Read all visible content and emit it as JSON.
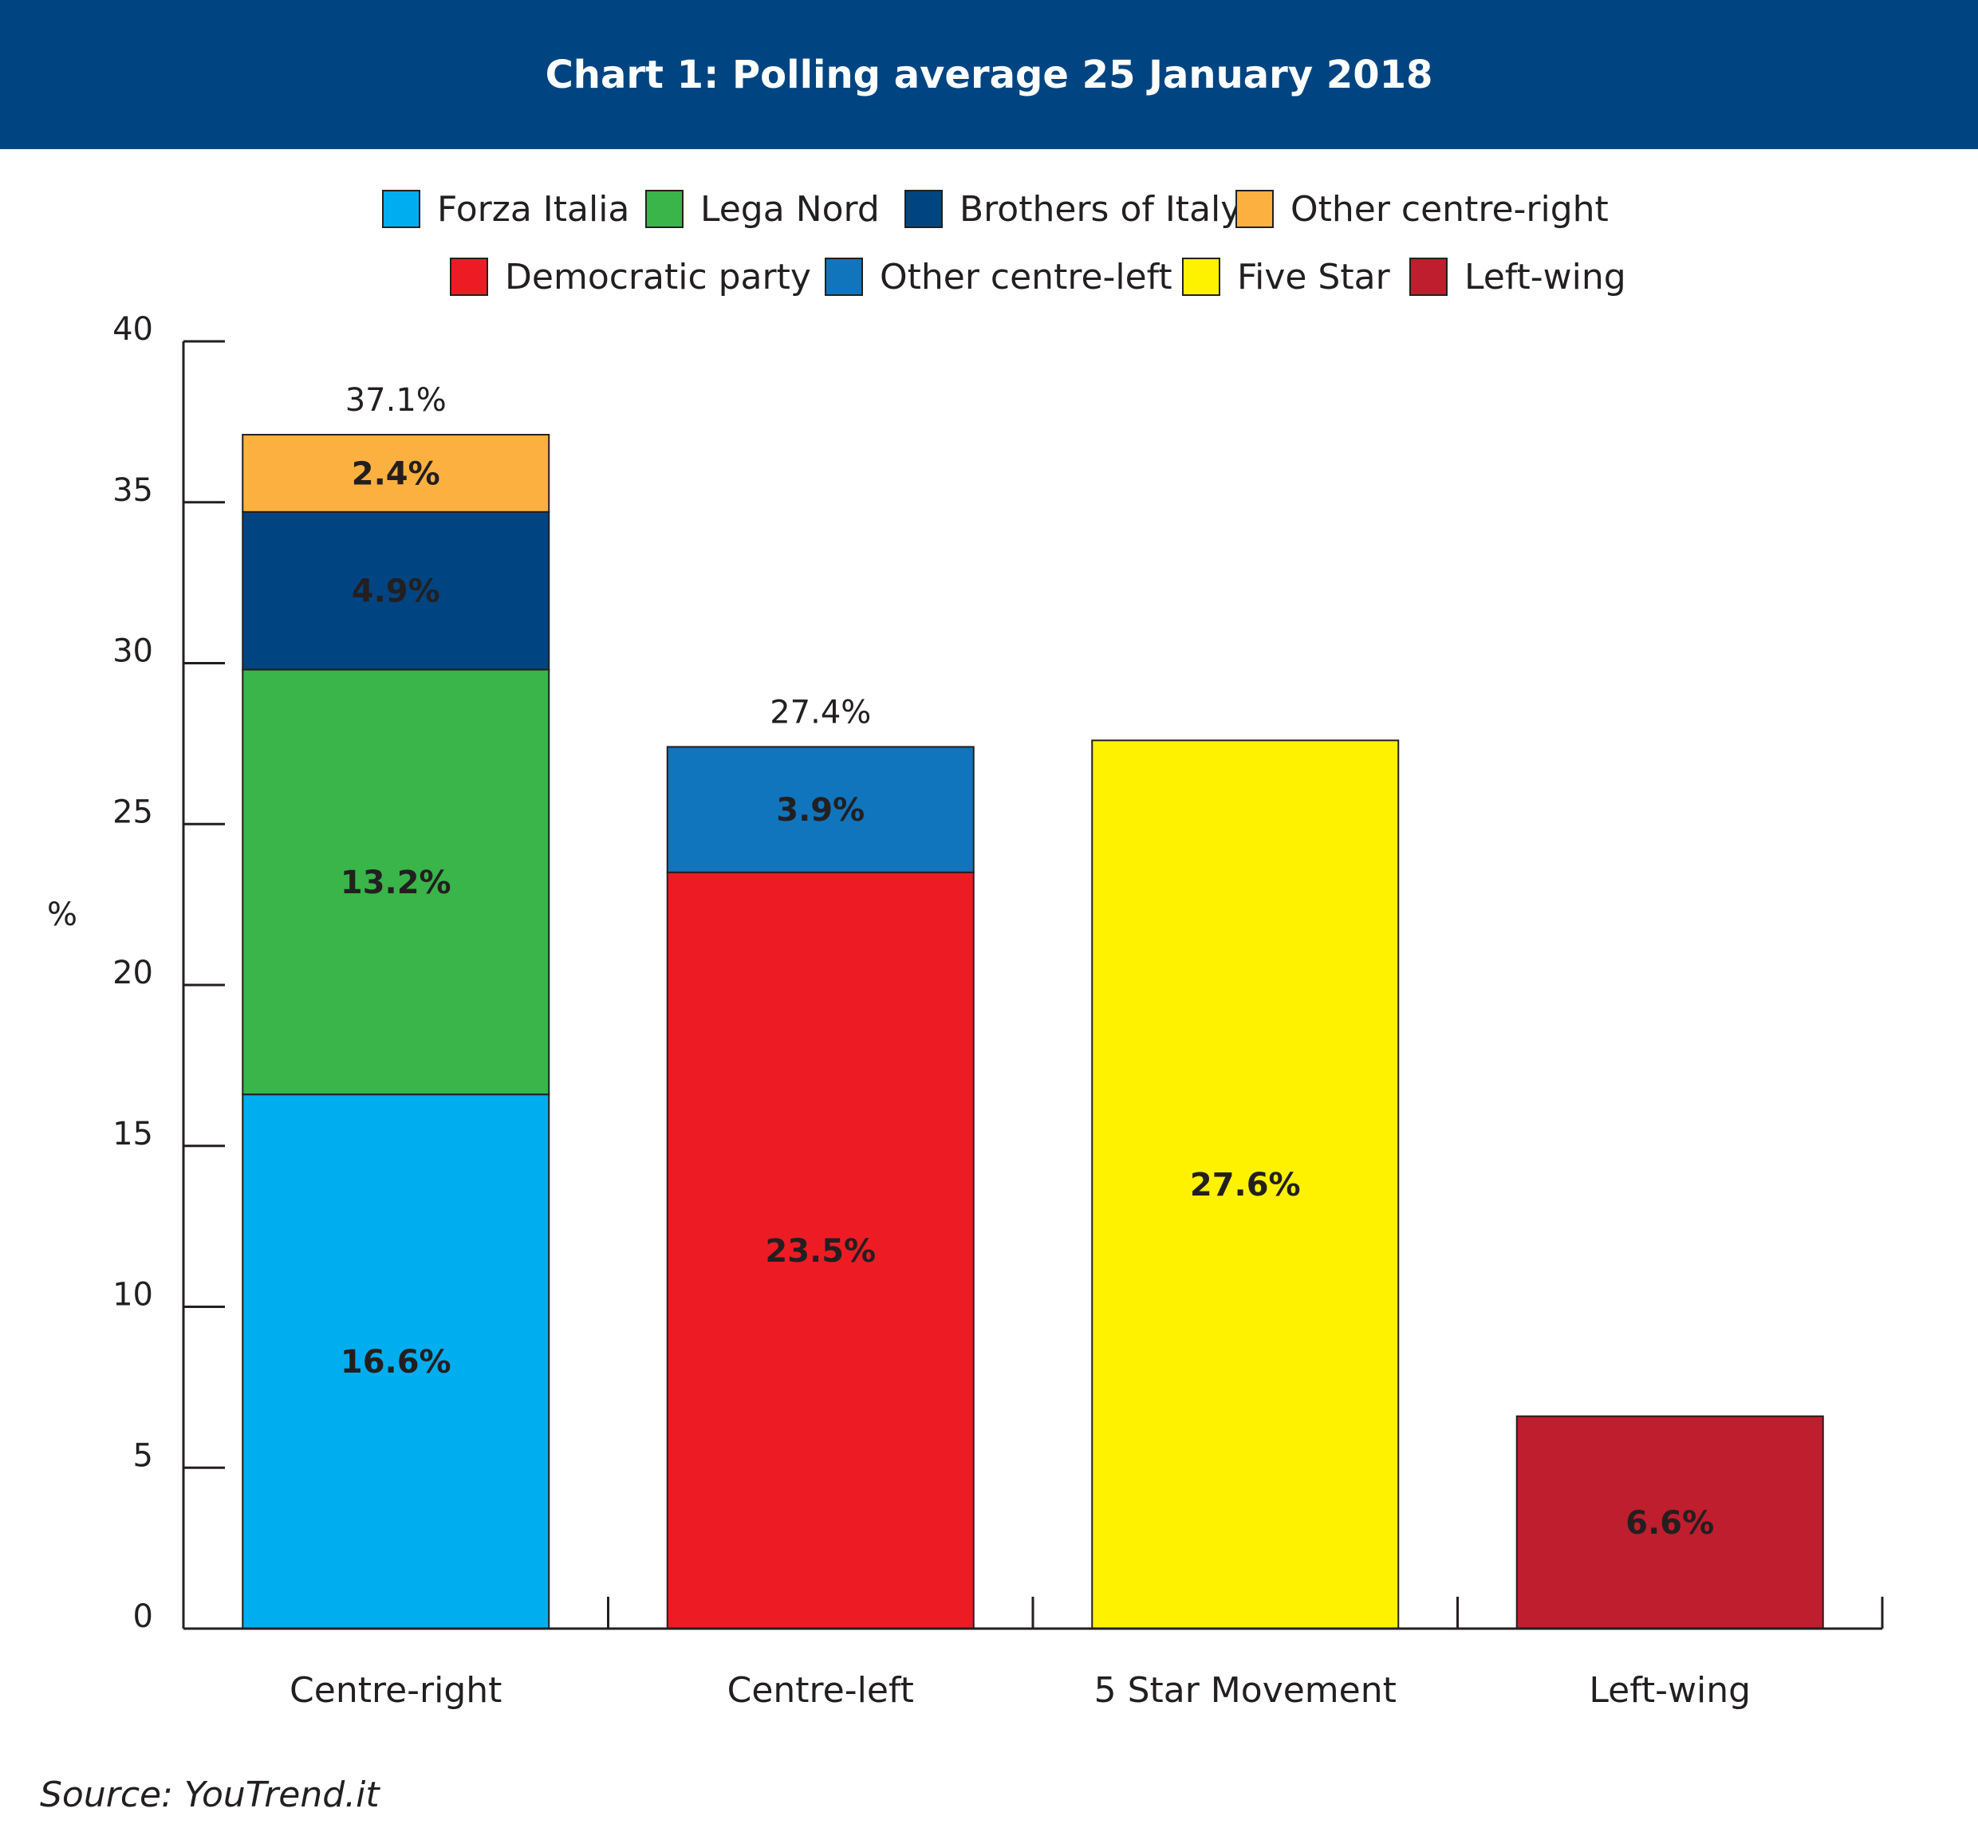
{
  "title": "Chart 1: Polling average 25 January 2018",
  "source": "Source: YouTrend.it",
  "chart_data": {
    "type": "bar",
    "stacked": true,
    "title": "Chart 1: Polling average 25 January 2018",
    "xlabel": "",
    "ylabel": "%",
    "ylim": [
      0,
      40
    ],
    "yticks": [
      0,
      5,
      10,
      15,
      20,
      25,
      30,
      35,
      40
    ],
    "grid": false,
    "legend_position": "top",
    "categories": [
      "Centre-right",
      "Centre-left",
      "5 Star Movement",
      "Left-wing"
    ],
    "series": [
      {
        "name": "Forza Italia",
        "color": "#00aeef",
        "values": [
          16.6,
          0,
          0,
          0
        ],
        "labels": [
          "16.6%",
          "",
          "",
          ""
        ]
      },
      {
        "name": "Lega Nord",
        "color": "#39b54a",
        "values": [
          13.2,
          0,
          0,
          0
        ],
        "labels": [
          "13.2%",
          "",
          "",
          ""
        ]
      },
      {
        "name": "Brothers of Italy",
        "color": "#004581",
        "values": [
          4.9,
          0,
          0,
          0
        ],
        "labels": [
          "4.9%",
          "",
          "",
          ""
        ]
      },
      {
        "name": "Other centre-right",
        "color": "#fbb040",
        "values": [
          2.4,
          0,
          0,
          0
        ],
        "labels": [
          "2.4%",
          "",
          "",
          ""
        ]
      },
      {
        "name": "Democratic party",
        "color": "#ed1c24",
        "values": [
          0,
          23.5,
          0,
          0
        ],
        "labels": [
          "",
          "23.5%",
          "",
          ""
        ]
      },
      {
        "name": "Other centre-left",
        "color": "#1075bc",
        "values": [
          0,
          3.9,
          0,
          0
        ],
        "labels": [
          "",
          "3.9%",
          "",
          ""
        ]
      },
      {
        "name": "Five Star",
        "color": "#fff200",
        "values": [
          0,
          0,
          27.6,
          0
        ],
        "labels": [
          "",
          "",
          "27.6%",
          ""
        ]
      },
      {
        "name": "Left-wing",
        "color": "#be1e2d",
        "values": [
          0,
          0,
          0,
          6.6
        ],
        "labels": [
          "",
          "",
          "",
          "6.6%"
        ]
      }
    ],
    "totals": [
      {
        "category": "Centre-right",
        "value": 37.1,
        "label": "37.1%"
      },
      {
        "category": "Centre-left",
        "value": 27.4,
        "label": "27.4%"
      }
    ]
  }
}
